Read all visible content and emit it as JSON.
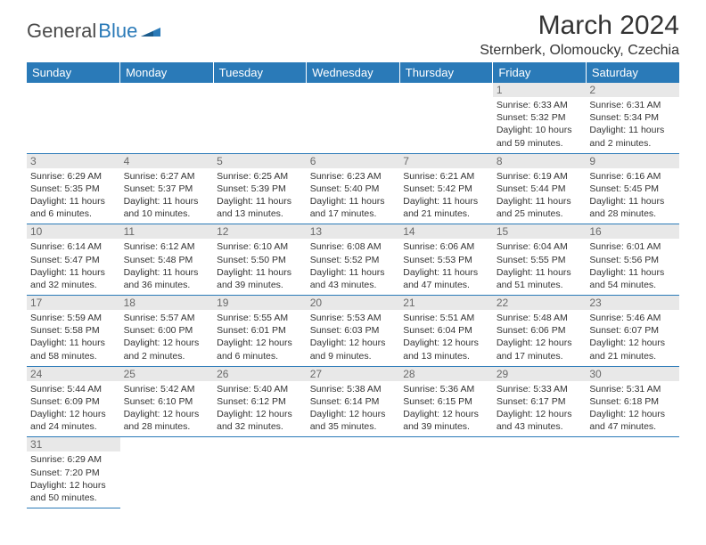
{
  "logo": {
    "text_dark": "General",
    "text_blue": "Blue",
    "dark_color": "#4a4a4a",
    "blue_color": "#2a7ab8"
  },
  "title": "March 2024",
  "location": "Sternberk, Olomoucky, Czechia",
  "header_bg": "#2a7ab8",
  "header_fg": "#ffffff",
  "grid_line": "#2a7ab8",
  "daynum_bg": "#e8e8e8",
  "daynum_fg": "#6a6a6a",
  "text_color": "#333333",
  "cell_font_size": 10.5,
  "weekdays": [
    "Sunday",
    "Monday",
    "Tuesday",
    "Wednesday",
    "Thursday",
    "Friday",
    "Saturday"
  ],
  "leading_blanks": 5,
  "days": [
    {
      "n": 1,
      "sunrise": "6:33 AM",
      "sunset": "5:32 PM",
      "daylight": "10 hours and 59 minutes."
    },
    {
      "n": 2,
      "sunrise": "6:31 AM",
      "sunset": "5:34 PM",
      "daylight": "11 hours and 2 minutes."
    },
    {
      "n": 3,
      "sunrise": "6:29 AM",
      "sunset": "5:35 PM",
      "daylight": "11 hours and 6 minutes."
    },
    {
      "n": 4,
      "sunrise": "6:27 AM",
      "sunset": "5:37 PM",
      "daylight": "11 hours and 10 minutes."
    },
    {
      "n": 5,
      "sunrise": "6:25 AM",
      "sunset": "5:39 PM",
      "daylight": "11 hours and 13 minutes."
    },
    {
      "n": 6,
      "sunrise": "6:23 AM",
      "sunset": "5:40 PM",
      "daylight": "11 hours and 17 minutes."
    },
    {
      "n": 7,
      "sunrise": "6:21 AM",
      "sunset": "5:42 PM",
      "daylight": "11 hours and 21 minutes."
    },
    {
      "n": 8,
      "sunrise": "6:19 AM",
      "sunset": "5:44 PM",
      "daylight": "11 hours and 25 minutes."
    },
    {
      "n": 9,
      "sunrise": "6:16 AM",
      "sunset": "5:45 PM",
      "daylight": "11 hours and 28 minutes."
    },
    {
      "n": 10,
      "sunrise": "6:14 AM",
      "sunset": "5:47 PM",
      "daylight": "11 hours and 32 minutes."
    },
    {
      "n": 11,
      "sunrise": "6:12 AM",
      "sunset": "5:48 PM",
      "daylight": "11 hours and 36 minutes."
    },
    {
      "n": 12,
      "sunrise": "6:10 AM",
      "sunset": "5:50 PM",
      "daylight": "11 hours and 39 minutes."
    },
    {
      "n": 13,
      "sunrise": "6:08 AM",
      "sunset": "5:52 PM",
      "daylight": "11 hours and 43 minutes."
    },
    {
      "n": 14,
      "sunrise": "6:06 AM",
      "sunset": "5:53 PM",
      "daylight": "11 hours and 47 minutes."
    },
    {
      "n": 15,
      "sunrise": "6:04 AM",
      "sunset": "5:55 PM",
      "daylight": "11 hours and 51 minutes."
    },
    {
      "n": 16,
      "sunrise": "6:01 AM",
      "sunset": "5:56 PM",
      "daylight": "11 hours and 54 minutes."
    },
    {
      "n": 17,
      "sunrise": "5:59 AM",
      "sunset": "5:58 PM",
      "daylight": "11 hours and 58 minutes."
    },
    {
      "n": 18,
      "sunrise": "5:57 AM",
      "sunset": "6:00 PM",
      "daylight": "12 hours and 2 minutes."
    },
    {
      "n": 19,
      "sunrise": "5:55 AM",
      "sunset": "6:01 PM",
      "daylight": "12 hours and 6 minutes."
    },
    {
      "n": 20,
      "sunrise": "5:53 AM",
      "sunset": "6:03 PM",
      "daylight": "12 hours and 9 minutes."
    },
    {
      "n": 21,
      "sunrise": "5:51 AM",
      "sunset": "6:04 PM",
      "daylight": "12 hours and 13 minutes."
    },
    {
      "n": 22,
      "sunrise": "5:48 AM",
      "sunset": "6:06 PM",
      "daylight": "12 hours and 17 minutes."
    },
    {
      "n": 23,
      "sunrise": "5:46 AM",
      "sunset": "6:07 PM",
      "daylight": "12 hours and 21 minutes."
    },
    {
      "n": 24,
      "sunrise": "5:44 AM",
      "sunset": "6:09 PM",
      "daylight": "12 hours and 24 minutes."
    },
    {
      "n": 25,
      "sunrise": "5:42 AM",
      "sunset": "6:10 PM",
      "daylight": "12 hours and 28 minutes."
    },
    {
      "n": 26,
      "sunrise": "5:40 AM",
      "sunset": "6:12 PM",
      "daylight": "12 hours and 32 minutes."
    },
    {
      "n": 27,
      "sunrise": "5:38 AM",
      "sunset": "6:14 PM",
      "daylight": "12 hours and 35 minutes."
    },
    {
      "n": 28,
      "sunrise": "5:36 AM",
      "sunset": "6:15 PM",
      "daylight": "12 hours and 39 minutes."
    },
    {
      "n": 29,
      "sunrise": "5:33 AM",
      "sunset": "6:17 PM",
      "daylight": "12 hours and 43 minutes."
    },
    {
      "n": 30,
      "sunrise": "5:31 AM",
      "sunset": "6:18 PM",
      "daylight": "12 hours and 47 minutes."
    },
    {
      "n": 31,
      "sunrise": "6:29 AM",
      "sunset": "7:20 PM",
      "daylight": "12 hours and 50 minutes."
    }
  ]
}
